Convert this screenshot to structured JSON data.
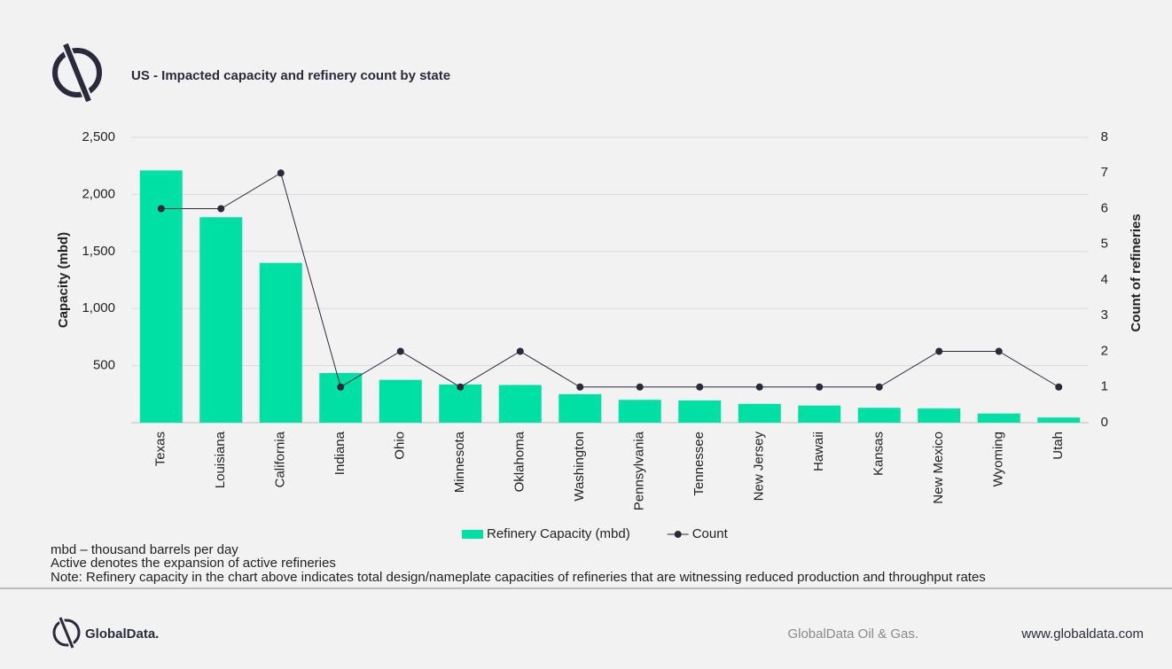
{
  "chart_data": {
    "type": "bar",
    "title": "US - Impacted capacity and refinery count by state",
    "y_label": "Capacity (mbd)",
    "y2_label": "Count of refineries",
    "categories": [
      "Texas",
      "Louisiana",
      "California",
      "Indiana",
      "Ohio",
      "Minnesota",
      "Oklahoma",
      "Washington",
      "Pennsylvania",
      "Tennessee",
      "New Jersey",
      "Hawaii",
      "Kansas",
      "New Mexico",
      "Wyoming",
      "Utah"
    ],
    "series": [
      {
        "name": "Refinery Capacity (mbd)",
        "type": "bar",
        "color": "#00e0a4",
        "values": [
          2210,
          1800,
          1400,
          435,
          375,
          335,
          330,
          250,
          200,
          195,
          165,
          150,
          130,
          125,
          80,
          45
        ]
      },
      {
        "name": "Count",
        "type": "line",
        "axis": "y2",
        "color": "#2b2a3d",
        "values": [
          6,
          6,
          7,
          1,
          2,
          1,
          2,
          1,
          1,
          1,
          1,
          1,
          1,
          2,
          2,
          1
        ]
      }
    ],
    "ylim": [
      0,
      2500
    ],
    "yticks": [
      500,
      {
        "value": 1000,
        "label": "1,000"
      },
      {
        "value": 1500,
        "label": "1,500"
      },
      {
        "value": 2000,
        "label": "2,000"
      },
      {
        "value": 2500,
        "label": "2,500"
      }
    ],
    "y2lim": [
      0,
      8
    ],
    "y2ticks": [
      0,
      1,
      2,
      3,
      4,
      5,
      6,
      7,
      8
    ],
    "grid": true,
    "legend": "bottom",
    "notes": [
      "mbd – thousand barrels per day",
      "Active denotes  the  expansion of active refineries",
      "Note:  Refinery capacity in the chart above indicates total design/nameplate capacities of refineries that are witnessing reduced production and throughput rates"
    ],
    "brand": "GlobalData.",
    "source": "GlobalData Oil & Gas.",
    "website": "www.globaldata.com"
  }
}
